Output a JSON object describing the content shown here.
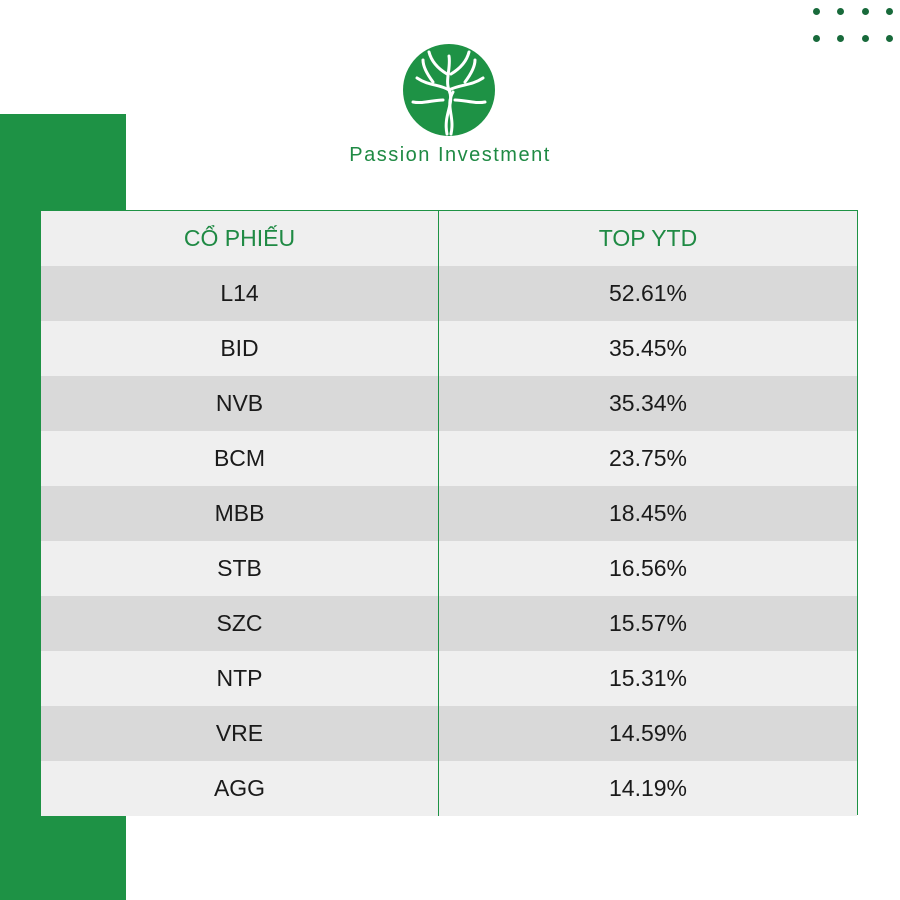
{
  "brand": {
    "name": "Passion Investment",
    "colors": {
      "primary": "#1e9245",
      "dark": "#186a3b",
      "row_alt": "#d9d9d9",
      "row_base": "#efefef"
    }
  },
  "table": {
    "headers": [
      "CỔ PHIẾU",
      "TOP YTD"
    ],
    "rows": [
      {
        "ticker": "L14",
        "ytd": "52.61%"
      },
      {
        "ticker": "BID",
        "ytd": "35.45%"
      },
      {
        "ticker": "NVB",
        "ytd": "35.34%"
      },
      {
        "ticker": "BCM",
        "ytd": "23.75%"
      },
      {
        "ticker": "MBB",
        "ytd": "18.45%"
      },
      {
        "ticker": "STB",
        "ytd": "16.56%"
      },
      {
        "ticker": "SZC",
        "ytd": "15.57%"
      },
      {
        "ticker": "NTP",
        "ytd": "15.31%"
      },
      {
        "ticker": "VRE",
        "ytd": "14.59%"
      },
      {
        "ticker": "AGG",
        "ytd": "14.19%"
      }
    ]
  },
  "icons": {
    "logo": "tree-logo-icon",
    "dots": "dot-grid-icon"
  }
}
